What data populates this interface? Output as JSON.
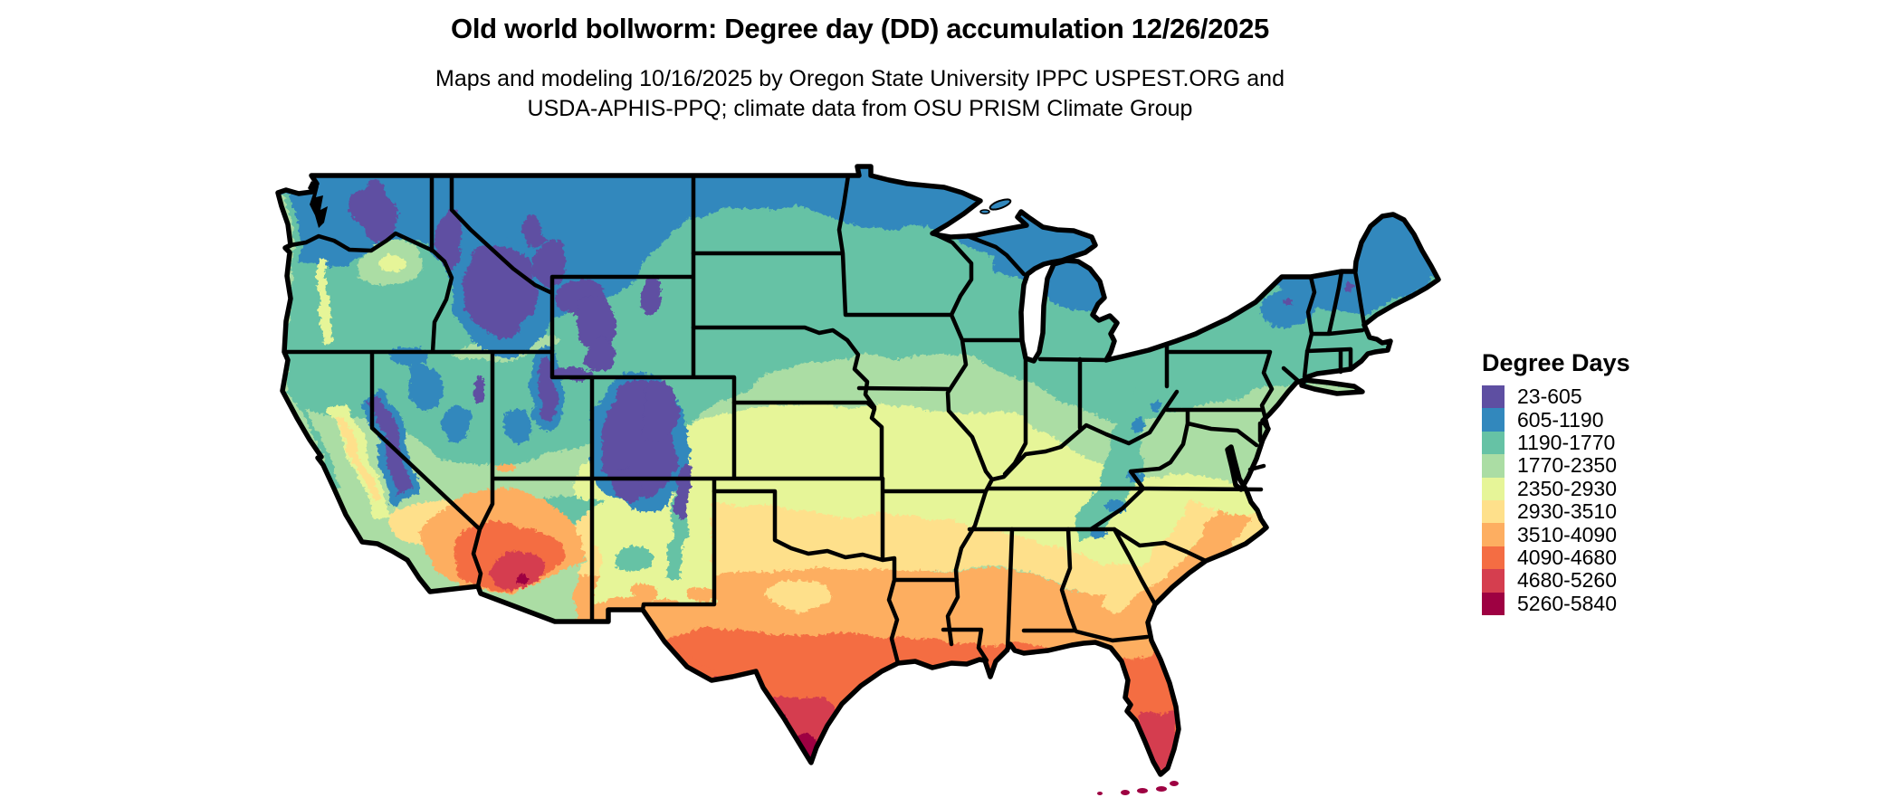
{
  "title": "Old world bollworm: Degree day (DD) accumulation 12/26/2025",
  "subtitle_line1": "Maps and modeling 10/16/2025 by Oregon State University IPPC USPEST.ORG and",
  "subtitle_line2": "USDA-APHIS-PPQ; climate data from OSU PRISM Climate Group",
  "legend": {
    "title": "Degree Days",
    "bins": [
      {
        "label": "23-605",
        "min": 23,
        "max": 605,
        "color": "#5e4fa2"
      },
      {
        "label": "605-1190",
        "min": 605,
        "max": 1190,
        "color": "#3288bd"
      },
      {
        "label": "1190-1770",
        "min": 1190,
        "max": 1770,
        "color": "#66c2a5"
      },
      {
        "label": "1770-2350",
        "min": 1770,
        "max": 2350,
        "color": "#abdda4"
      },
      {
        "label": "2350-2930",
        "min": 2350,
        "max": 2930,
        "color": "#e6f598"
      },
      {
        "label": "2930-3510",
        "min": 2930,
        "max": 3510,
        "color": "#fee08b"
      },
      {
        "label": "3510-4090",
        "min": 3510,
        "max": 4090,
        "color": "#fdae61"
      },
      {
        "label": "4090-4680",
        "min": 4090,
        "max": 4680,
        "color": "#f46d43"
      },
      {
        "label": "4680-5260",
        "min": 4680,
        "max": 5260,
        "color": "#d53e4f"
      },
      {
        "label": "5260-5840",
        "min": 5260,
        "max": 5840,
        "color": "#9e0142"
      }
    ]
  },
  "map": {
    "background": "#ffffff",
    "border_color": "#000000"
  },
  "chart_data": {
    "type": "heatmap",
    "subtype": "choropleth-map",
    "title": "Old world bollworm: Degree day (DD) accumulation 12/26/2025",
    "legend_title": "Degree Days",
    "legend_position": "right",
    "value_unit": "degree days (DD)",
    "value_range": [
      23,
      5840
    ],
    "num_classes": 10,
    "class_breaks": [
      23,
      605,
      1190,
      1770,
      2350,
      2930,
      3510,
      4090,
      4680,
      5260,
      5840
    ],
    "palette": [
      "#5e4fa2",
      "#3288bd",
      "#66c2a5",
      "#abdda4",
      "#e6f598",
      "#fee08b",
      "#fdae61",
      "#f46d43",
      "#d53e4f",
      "#9e0142"
    ]
  }
}
